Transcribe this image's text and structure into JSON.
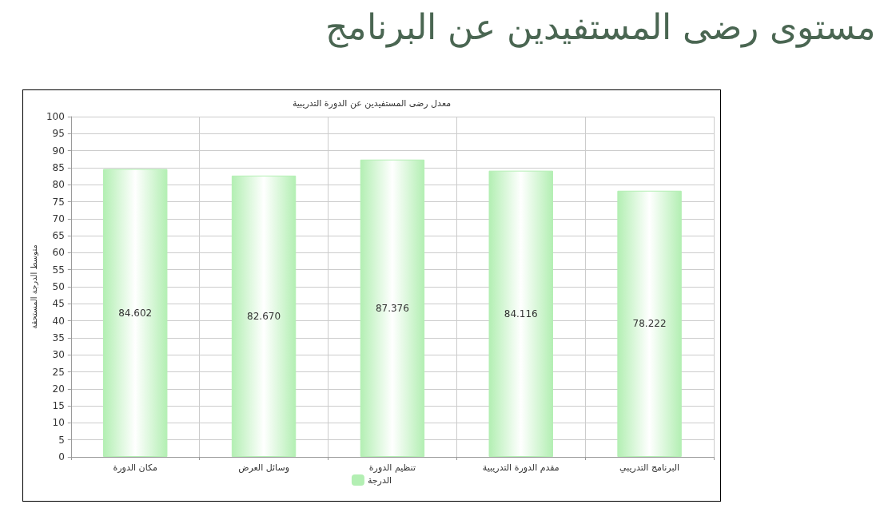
{
  "chart_data": {
    "type": "bar",
    "title": "مستوى رضى المستفيدين عن البرنامج",
    "subtitle": "معدل رضى المستفيدين عن الدورة التدريبية",
    "ylabel": "متوسط الدرجة المستحقة",
    "categories": [
      "مكان الدورة",
      "وسائل العرض",
      "تنظيم الدورة",
      "مقدم الدورة التدريبية",
      "البرنامج التدريبي"
    ],
    "series": [
      {
        "name": "الدرجة",
        "color": "#b3efb3",
        "values": [
          84.602,
          82.67,
          87.376,
          84.116,
          78.222
        ],
        "value_labels": [
          "84.602",
          "82.670",
          "87.376",
          "84.116",
          "78.222"
        ]
      }
    ],
    "ylim": [
      0,
      100
    ],
    "yticks": [
      0,
      5,
      10,
      15,
      20,
      25,
      30,
      35,
      40,
      45,
      50,
      55,
      60,
      65,
      70,
      75,
      80,
      85,
      90,
      95,
      100
    ],
    "grid": true,
    "legend": "bottom"
  }
}
